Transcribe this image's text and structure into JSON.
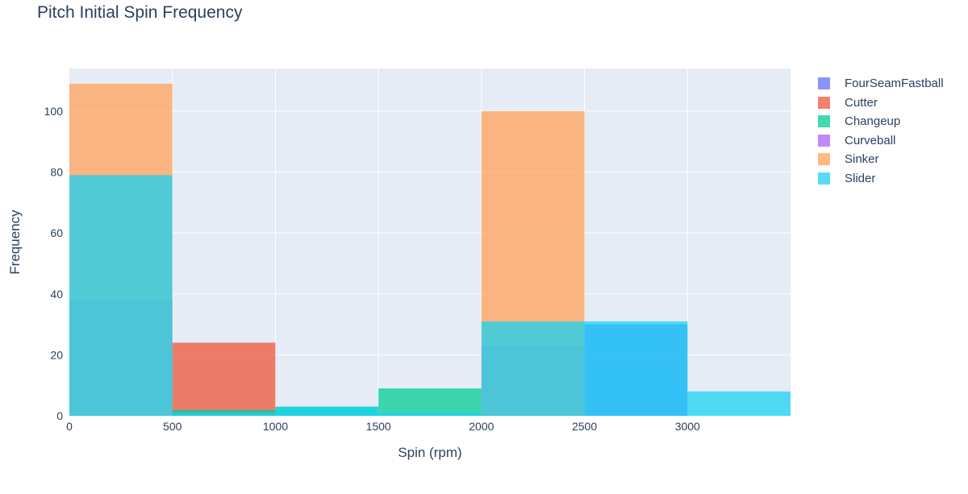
{
  "chart_data": {
    "type": "bar",
    "title": "Pitch Initial Spin Frequency",
    "xlabel": "Spin (rpm)",
    "ylabel": "Frequency",
    "bin_edges": [
      0,
      500,
      1000,
      1500,
      2000,
      2500,
      3000,
      3500
    ],
    "xlim": [
      0,
      3500
    ],
    "ylim": [
      0,
      114
    ],
    "xticks": [
      "0",
      "500",
      "1000",
      "1500",
      "2000",
      "2500",
      "3000"
    ],
    "yticks": [
      "0",
      "20",
      "40",
      "60",
      "80",
      "100"
    ],
    "barmode": "overlay",
    "grid": true,
    "legend_position": "top-right",
    "series": [
      {
        "name": "FourSeamFastball",
        "color": "#636efa",
        "values": [
          38,
          0,
          0,
          0,
          23,
          30,
          0
        ]
      },
      {
        "name": "Cutter",
        "color": "#ef553b",
        "values": [
          0,
          24,
          0,
          0,
          0,
          0,
          0
        ]
      },
      {
        "name": "Changeup",
        "color": "#00cc96",
        "values": [
          0,
          2,
          3,
          9,
          0,
          0,
          0
        ]
      },
      {
        "name": "Curveball",
        "color": "#ab63fa",
        "values": [
          0,
          0,
          0,
          0,
          0,
          0,
          0
        ]
      },
      {
        "name": "Sinker",
        "color": "#ffa15a",
        "values": [
          109,
          0,
          0,
          0,
          100,
          0,
          0
        ]
      },
      {
        "name": "Slider",
        "color": "#19d3f3",
        "values": [
          79,
          1,
          3,
          1,
          31,
          31,
          8
        ]
      }
    ]
  }
}
